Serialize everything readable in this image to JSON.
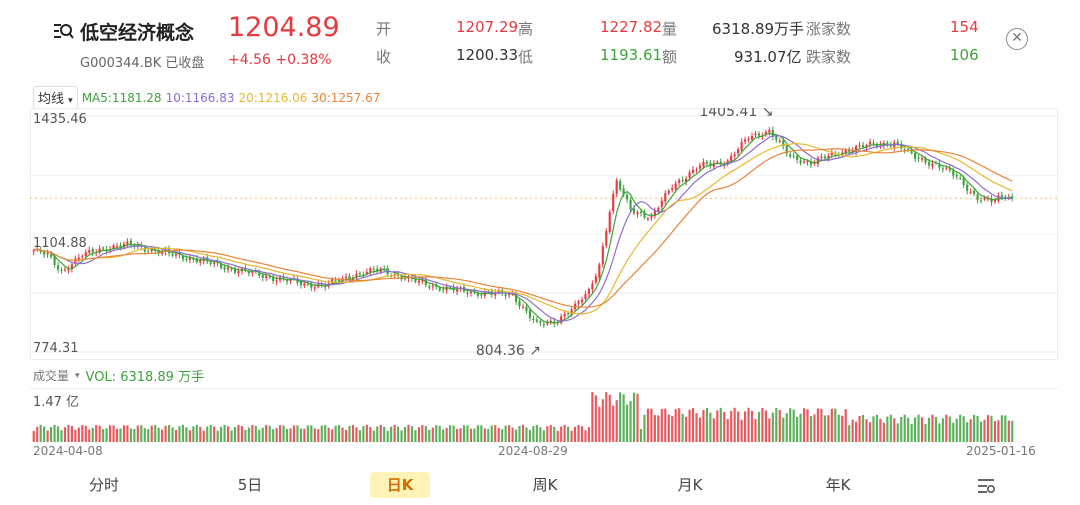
{
  "header": {
    "icon": "index-search-icon",
    "name": "低空经济概念",
    "code_status": "G000344.BK 已收盘",
    "price": "1204.89",
    "change": "+4.56 +0.38%",
    "close_icon": "close-icon"
  },
  "stats": {
    "open_label": "开",
    "open": "1207.29",
    "high_label": "高",
    "high": "1227.82",
    "volume_label": "量",
    "volume": "6318.89万手",
    "up_label": "涨家数",
    "up_count": "154",
    "prev_label": "收",
    "prev_close": "1200.33",
    "low_label": "低",
    "low": "1193.61",
    "amount_label": "额",
    "amount": "931.07亿",
    "down_label": "跌家数",
    "down_count": "106"
  },
  "indicators": {
    "selector": "均线",
    "ma5": "MA5:1181.28",
    "ma10": "10:1166.83",
    "ma20": "20:1216.06",
    "ma30": "30:1257.67"
  },
  "colors": {
    "up": "#e63a3f",
    "down": "#3da33b",
    "ma5": "#3da33b",
    "ma10": "#8c6ed4",
    "ma20": "#e8b830",
    "ma30": "#e8843c"
  },
  "chart_data": {
    "type": "candlestick",
    "y_ticks": [
      "1435.46",
      "1104.88",
      "774.31"
    ],
    "ylim": [
      774.31,
      1435.46
    ],
    "x_labels": [
      "2024-04-08",
      "2024-08-29",
      "2025-01-16"
    ],
    "annotations": [
      {
        "text": "1405.41",
        "kind": "max"
      },
      {
        "text": "804.36",
        "kind": "min"
      }
    ],
    "anchors": [
      {
        "i": 0,
        "c": 1060
      },
      {
        "i": 4,
        "c": 1045
      },
      {
        "i": 8,
        "c": 1000
      },
      {
        "i": 14,
        "c": 1045
      },
      {
        "i": 20,
        "c": 1065
      },
      {
        "i": 28,
        "c": 1075
      },
      {
        "i": 36,
        "c": 1055
      },
      {
        "i": 46,
        "c": 1035
      },
      {
        "i": 58,
        "c": 1005
      },
      {
        "i": 70,
        "c": 980
      },
      {
        "i": 78,
        "c": 965
      },
      {
        "i": 84,
        "c": 960
      },
      {
        "i": 92,
        "c": 990
      },
      {
        "i": 100,
        "c": 1005
      },
      {
        "i": 108,
        "c": 978
      },
      {
        "i": 118,
        "c": 952
      },
      {
        "i": 128,
        "c": 940
      },
      {
        "i": 138,
        "c": 935
      },
      {
        "i": 145,
        "c": 850
      },
      {
        "i": 150,
        "c": 860
      },
      {
        "i": 156,
        "c": 900
      },
      {
        "i": 160,
        "c": 945
      },
      {
        "i": 163,
        "c": 1020
      },
      {
        "i": 166,
        "c": 1170
      },
      {
        "i": 168,
        "c": 1250
      },
      {
        "i": 172,
        "c": 1175
      },
      {
        "i": 178,
        "c": 1150
      },
      {
        "i": 184,
        "c": 1240
      },
      {
        "i": 192,
        "c": 1295
      },
      {
        "i": 200,
        "c": 1310
      },
      {
        "i": 206,
        "c": 1375
      },
      {
        "i": 212,
        "c": 1395
      },
      {
        "i": 218,
        "c": 1320
      },
      {
        "i": 224,
        "c": 1305
      },
      {
        "i": 230,
        "c": 1325
      },
      {
        "i": 236,
        "c": 1345
      },
      {
        "i": 242,
        "c": 1355
      },
      {
        "i": 248,
        "c": 1360
      },
      {
        "i": 254,
        "c": 1320
      },
      {
        "i": 260,
        "c": 1300
      },
      {
        "i": 266,
        "c": 1265
      },
      {
        "i": 272,
        "c": 1205
      },
      {
        "i": 276,
        "c": 1195
      },
      {
        "i": 280,
        "c": 1215
      },
      {
        "i": 282,
        "c": 1204.89
      }
    ],
    "count": 283,
    "volume_label": "成交量",
    "volume_value": "VOL: 6318.89 万手",
    "volume_max": "1.47 亿"
  },
  "tabs": [
    "分时",
    "5日",
    "日K",
    "周K",
    "月K",
    "年K"
  ],
  "active_tab": "日K",
  "settings_icon": "chart-settings-icon"
}
